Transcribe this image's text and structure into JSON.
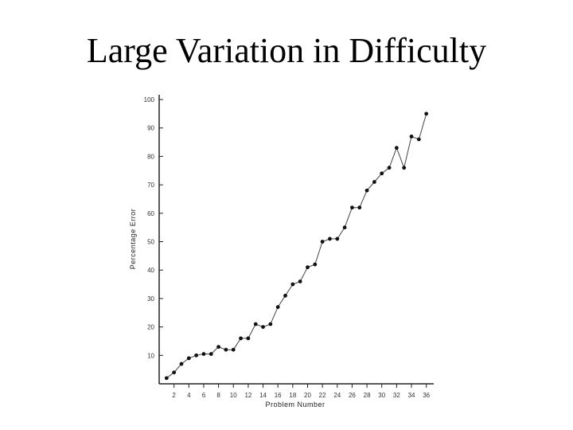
{
  "slide": {
    "title": "Large Variation in Difficulty"
  },
  "chart_data": {
    "type": "line",
    "xlabel": "Problem Number",
    "ylabel": "Percentage Error",
    "xlim": [
      0,
      37
    ],
    "ylim": [
      0,
      100
    ],
    "x_ticks": [
      2,
      4,
      6,
      8,
      10,
      12,
      14,
      16,
      18,
      20,
      22,
      24,
      26,
      28,
      30,
      32,
      34,
      36
    ],
    "y_ticks": [
      10,
      20,
      30,
      40,
      50,
      60,
      70,
      80,
      90,
      100
    ],
    "grid": false,
    "series": [
      {
        "x": [
          1,
          2,
          3,
          4,
          5,
          6,
          7,
          8,
          9,
          10,
          11,
          12,
          13,
          14,
          15,
          16,
          17,
          18,
          19,
          20,
          21,
          22,
          23,
          24,
          25,
          26,
          27,
          28,
          29,
          30,
          31,
          32,
          33,
          34,
          35,
          36
        ],
        "values": [
          2,
          4,
          7,
          9,
          10,
          10.5,
          10.5,
          13,
          12,
          12,
          16,
          16,
          21,
          20,
          21,
          27,
          31,
          35,
          36,
          41,
          42,
          50,
          51,
          51,
          55,
          62,
          62,
          68,
          71,
          74,
          76,
          83,
          76,
          87,
          86,
          95
        ]
      }
    ],
    "colors": {
      "line": "#444444",
      "marker": "#111111",
      "axis": "#222222"
    }
  }
}
